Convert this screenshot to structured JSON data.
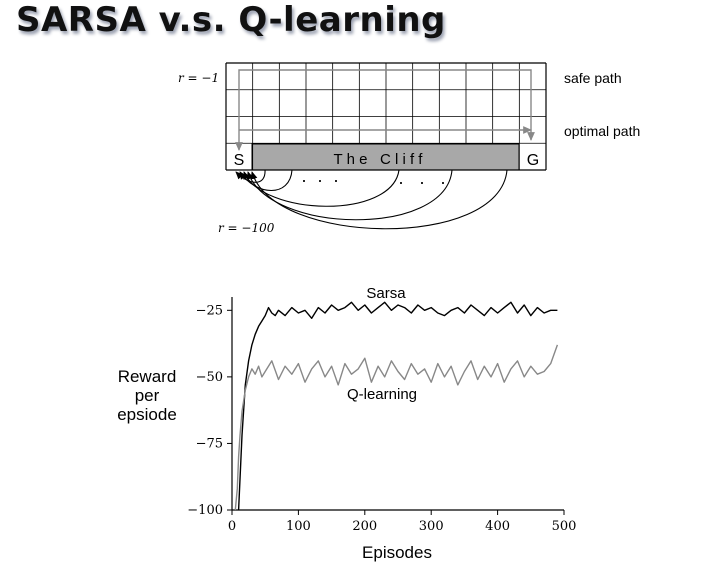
{
  "slide": {
    "title": "SARSA v.s. Q-learning"
  },
  "gridworld": {
    "reward_step": "r = −1",
    "reward_cliff": "r = −100",
    "start_label": "S",
    "goal_label": "G",
    "cliff_label": "T h e   C l i f f",
    "safe_path_label": "safe path",
    "optimal_path_label": "optimal path",
    "ellipsis_left": "·  ·  ·",
    "ellipsis_right": "·   ·   ·",
    "colors": {
      "cliff_fill": "#a8a8a8",
      "grid_line": "#000000",
      "path_arrow": "#888888"
    }
  },
  "chart_data": {
    "type": "line",
    "xlabel": "Episodes",
    "ylabel": [
      "Reward",
      "per",
      "epsiode"
    ],
    "xlim": [
      0,
      500
    ],
    "ylim": [
      -100,
      -20
    ],
    "xticks": [
      0,
      100,
      200,
      300,
      400,
      500
    ],
    "yticks": [
      -25,
      -50,
      -75,
      -100
    ],
    "grid": false,
    "series": [
      {
        "name": "Sarsa",
        "color": "#000000",
        "x": [
          10,
          15,
          20,
          25,
          30,
          35,
          40,
          45,
          50,
          55,
          60,
          65,
          70,
          80,
          90,
          100,
          110,
          120,
          130,
          140,
          150,
          160,
          170,
          180,
          190,
          200,
          210,
          220,
          230,
          240,
          250,
          260,
          270,
          280,
          290,
          300,
          310,
          320,
          330,
          340,
          350,
          360,
          370,
          380,
          390,
          400,
          410,
          420,
          430,
          440,
          450,
          460,
          470,
          480,
          490
        ],
        "values": [
          -100,
          -72,
          -53,
          -44,
          -38,
          -34,
          -31,
          -29,
          -27,
          -24,
          -26,
          -27,
          -25,
          -27,
          -24,
          -26,
          -25,
          -28,
          -24,
          -26,
          -23,
          -25,
          -24,
          -22,
          -25,
          -23,
          -26,
          -24,
          -22,
          -25,
          -23,
          -24,
          -26,
          -23,
          -25,
          -24,
          -26,
          -27,
          -25,
          -24,
          -26,
          -23,
          -25,
          -27,
          -24,
          -26,
          -24,
          -22,
          -26,
          -23,
          -27,
          -24,
          -26,
          -25,
          -25
        ]
      },
      {
        "name": "Q-learning",
        "color": "#888888",
        "x": [
          5,
          8,
          10,
          12,
          15,
          20,
          25,
          30,
          35,
          40,
          45,
          50,
          60,
          70,
          80,
          90,
          100,
          110,
          120,
          130,
          140,
          150,
          160,
          170,
          180,
          190,
          200,
          210,
          220,
          230,
          240,
          250,
          260,
          270,
          280,
          290,
          300,
          310,
          320,
          330,
          340,
          350,
          360,
          370,
          380,
          390,
          400,
          410,
          420,
          430,
          440,
          450,
          460,
          470,
          480,
          490
        ],
        "values": [
          -100,
          -92,
          -80,
          -72,
          -63,
          -55,
          -50,
          -47,
          -49,
          -46,
          -50,
          -48,
          -44,
          -51,
          -46,
          -49,
          -45,
          -52,
          -47,
          -44,
          -50,
          -46,
          -53,
          -45,
          -49,
          -47,
          -43,
          -52,
          -46,
          -50,
          -44,
          -48,
          -51,
          -45,
          -49,
          -47,
          -52,
          -45,
          -50,
          -46,
          -53,
          -48,
          -44,
          -51,
          -46,
          -50,
          -45,
          -52,
          -47,
          -44,
          -50,
          -46,
          -49,
          -48,
          -45,
          -38
        ]
      }
    ]
  }
}
